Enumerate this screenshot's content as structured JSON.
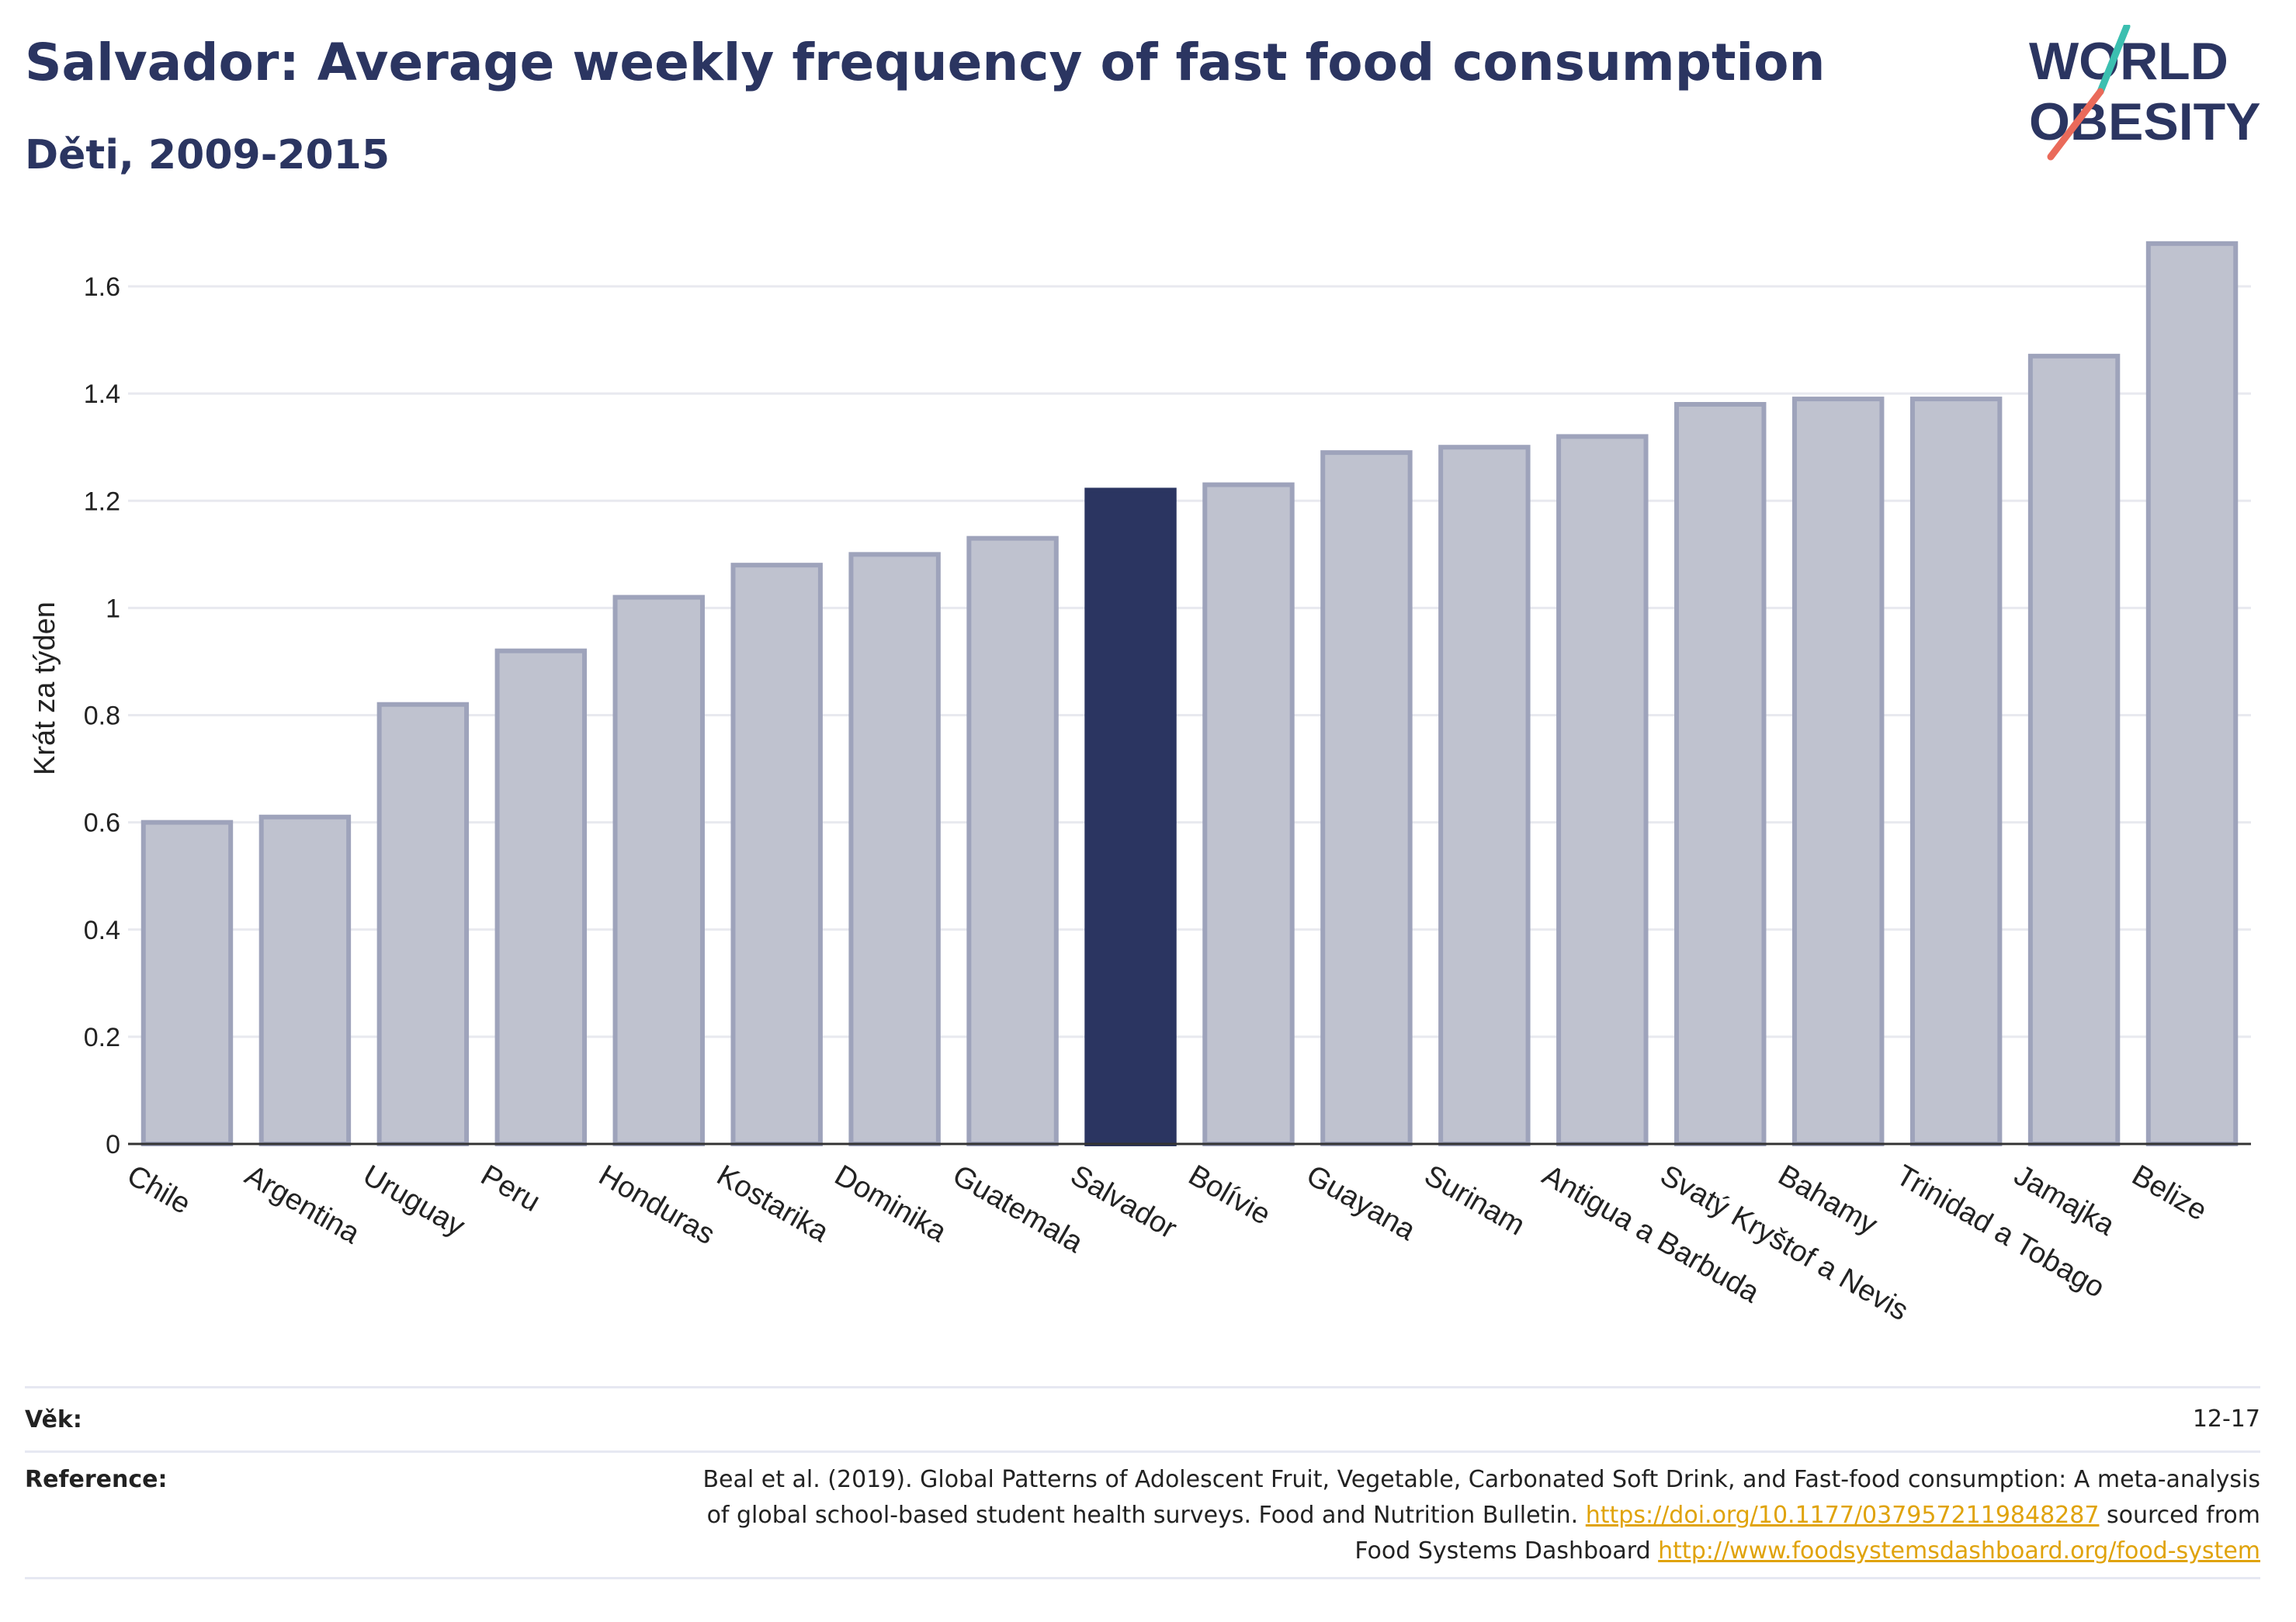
{
  "header": {
    "title": "Salvador: Average weekly frequency of fast food consumption",
    "subtitle": "Děti, 2009-2015"
  },
  "logo": {
    "line1": "WORLD",
    "line2": "OBESITY"
  },
  "chart_data": {
    "type": "bar",
    "title": "Salvador: Average weekly frequency of fast food consumption",
    "subtitle": "Děti, 2009-2015",
    "ylabel": "Krát za týden",
    "xlabel": "",
    "ylim": [
      0,
      1.7
    ],
    "yticks": [
      0,
      0.2,
      0.4,
      0.6,
      0.8,
      1,
      1.2,
      1.4,
      1.6
    ],
    "ytick_labels": [
      "0",
      "0.2",
      "0.4",
      "0.6",
      "0.8",
      "1",
      "1.2",
      "1.4",
      "1.6"
    ],
    "grid": true,
    "highlight": "Salvador",
    "categories": [
      "Chile",
      "Argentina",
      "Uruguay",
      "Peru",
      "Honduras",
      "Kostarika",
      "Dominika",
      "Guatemala",
      "Salvador",
      "Bolívie",
      "Guayana",
      "Surinam",
      "Antigua a Barbuda",
      "Svatý Kryštof a Nevis",
      "Bahamy",
      "Trinidad a Tobago",
      "Jamajka",
      "Belize"
    ],
    "values": [
      0.6,
      0.61,
      0.82,
      0.92,
      1.02,
      1.08,
      1.1,
      1.13,
      1.22,
      1.23,
      1.29,
      1.3,
      1.32,
      1.38,
      1.39,
      1.39,
      1.47,
      1.68
    ],
    "colors": {
      "bar": "#bfc2cf",
      "bar_border": "#9ea3bb",
      "highlight": "#2b3561"
    }
  },
  "footer": {
    "age_label": "Věk:",
    "age_value": "12-17",
    "reference_label": "Reference:",
    "reference_line1": "Beal et al. (2019). Global Patterns of Adolescent Fruit, Vegetable, Carbonated Soft Drink, and Fast-food consumption: A meta-analysis",
    "reference_line2_text": "of global school-based student health surveys. Food and Nutrition Bulletin. ",
    "reference_line2_link": "https://doi.org/10.1177/0379572119848287",
    "reference_line2_suffix": " sourced from",
    "reference_line3_text": "Food Systems Dashboard ",
    "reference_line3_link": "http://www.foodsystemsdashboard.org/food-system"
  }
}
